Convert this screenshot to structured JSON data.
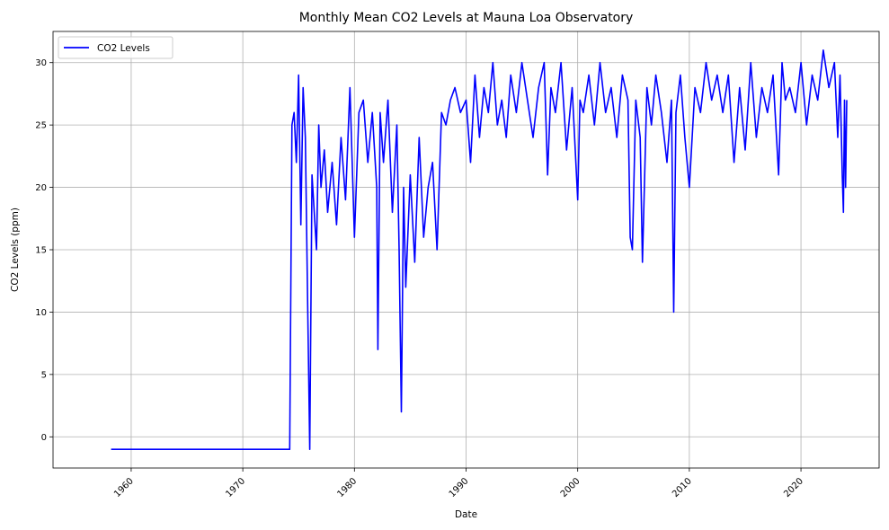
{
  "chart_data": {
    "type": "line",
    "title": "Monthly Mean CO2 Levels at Mauna Loa Observatory",
    "xlabel": "Date",
    "ylabel": "CO2 Levels (ppm)",
    "xlim": [
      1953,
      2027
    ],
    "ylim": [
      -2.5,
      32.5
    ],
    "x_ticks": [
      1960,
      1970,
      1980,
      1990,
      2000,
      2010,
      2020
    ],
    "y_ticks": [
      0,
      5,
      10,
      15,
      20,
      25,
      30
    ],
    "grid": true,
    "legend_position": "upper-left",
    "series": [
      {
        "name": "CO2 Levels",
        "color": "#0000ff",
        "x": [
          1958.2,
          1974.2,
          1974.4,
          1974.6,
          1974.8,
          1975.0,
          1975.2,
          1975.4,
          1975.6,
          1975.8,
          1976.0,
          1976.2,
          1976.4,
          1976.6,
          1976.8,
          1977.0,
          1977.3,
          1977.6,
          1978.0,
          1978.4,
          1978.8,
          1979.2,
          1979.6,
          1980.0,
          1980.4,
          1980.8,
          1981.2,
          1981.6,
          1982.0,
          1982.1,
          1982.3,
          1982.6,
          1983.0,
          1983.4,
          1983.8,
          1984.0,
          1984.2,
          1984.4,
          1984.6,
          1985.0,
          1985.4,
          1985.8,
          1986.2,
          1986.6,
          1987.0,
          1987.4,
          1987.8,
          1988.2,
          1988.6,
          1989.0,
          1989.5,
          1990.0,
          1990.4,
          1990.8,
          1991.2,
          1991.6,
          1992.0,
          1992.4,
          1992.8,
          1993.2,
          1993.6,
          1994.0,
          1994.5,
          1995.0,
          1995.5,
          1996.0,
          1996.5,
          1997.0,
          1997.3,
          1997.6,
          1998.0,
          1998.5,
          1999.0,
          1999.5,
          2000.0,
          2000.2,
          2000.5,
          2001.0,
          2001.5,
          2002.0,
          2002.5,
          2003.0,
          2003.5,
          2004.0,
          2004.5,
          2004.7,
          2004.9,
          2005.2,
          2005.6,
          2005.8,
          2006.2,
          2006.6,
          2007.0,
          2007.5,
          2008.0,
          2008.4,
          2008.6,
          2008.8,
          2009.2,
          2009.6,
          2010.0,
          2010.5,
          2011.0,
          2011.5,
          2012.0,
          2012.5,
          2013.0,
          2013.5,
          2014.0,
          2014.5,
          2015.0,
          2015.5,
          2016.0,
          2016.5,
          2017.0,
          2017.5,
          2018.0,
          2018.3,
          2018.6,
          2019.0,
          2019.5,
          2020.0,
          2020.5,
          2021.0,
          2021.5,
          2022.0,
          2022.5,
          2023.0,
          2023.3,
          2023.5,
          2023.7,
          2023.8,
          2023.9,
          2024.0,
          2024.1
        ],
        "y": [
          -1,
          -1,
          25,
          26,
          22,
          29,
          17,
          28,
          24,
          11,
          -1,
          21,
          18,
          15,
          25,
          20,
          23,
          18,
          22,
          17,
          24,
          19,
          28,
          16,
          26,
          27,
          22,
          26,
          20,
          7,
          26,
          22,
          27,
          18,
          25,
          15,
          2,
          20,
          12,
          21,
          14,
          24,
          16,
          20,
          22,
          15,
          26,
          25,
          27,
          28,
          26,
          27,
          22,
          29,
          24,
          28,
          26,
          30,
          25,
          27,
          24,
          29,
          26,
          30,
          27,
          24,
          28,
          30,
          21,
          28,
          26,
          30,
          23,
          28,
          19,
          27,
          26,
          29,
          25,
          30,
          26,
          28,
          24,
          29,
          27,
          16,
          15,
          27,
          24,
          14,
          28,
          25,
          29,
          26,
          22,
          27,
          10,
          26,
          29,
          24,
          20,
          28,
          26,
          30,
          27,
          29,
          26,
          29,
          22,
          28,
          23,
          30,
          24,
          28,
          26,
          29,
          21,
          30,
          27,
          28,
          26,
          30,
          25,
          29,
          27,
          31,
          28,
          30,
          24,
          29,
          21,
          18,
          27,
          20,
          27
        ]
      }
    ]
  }
}
